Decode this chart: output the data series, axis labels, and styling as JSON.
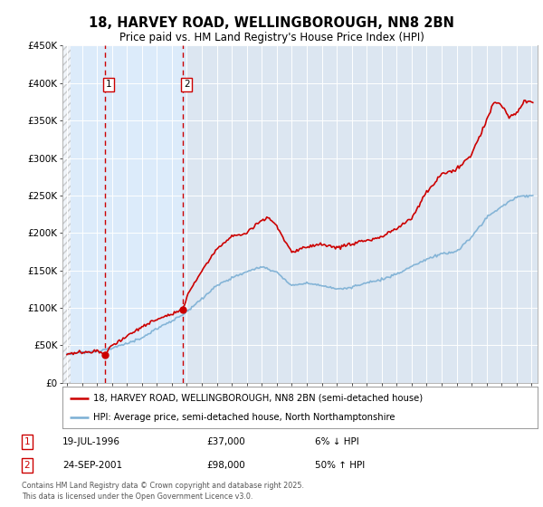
{
  "title": "18, HARVEY ROAD, WELLINGBOROUGH, NN8 2BN",
  "subtitle": "Price paid vs. HM Land Registry's House Price Index (HPI)",
  "background_color": "#ffffff",
  "plot_bg_color": "#dce6f1",
  "hatch_end": 1994.25,
  "highlight_start": 1994.25,
  "highlight_end": 2002.0,
  "xmin": 1993.7,
  "xmax": 2025.4,
  "ymin": 0,
  "ymax": 450000,
  "yticks": [
    0,
    50000,
    100000,
    150000,
    200000,
    250000,
    300000,
    350000,
    400000,
    450000
  ],
  "ytick_labels": [
    "£0",
    "£50K",
    "£100K",
    "£150K",
    "£200K",
    "£250K",
    "£300K",
    "£350K",
    "£400K",
    "£450K"
  ],
  "grid_color": "#ffffff",
  "hpi_color": "#7bafd4",
  "price_color": "#cc0000",
  "sale1_year": 1996.54,
  "sale1_price": 37000,
  "sale2_year": 2001.73,
  "sale2_price": 98000,
  "legend_line1": "18, HARVEY ROAD, WELLINGBOROUGH, NN8 2BN (semi-detached house)",
  "legend_line2": "HPI: Average price, semi-detached house, North Northamptonshire",
  "table_rows": [
    [
      "1",
      "19-JUL-1996",
      "£37,000",
      "6% ↓ HPI"
    ],
    [
      "2",
      "24-SEP-2001",
      "£98,000",
      "50% ↑ HPI"
    ]
  ],
  "footnote": "Contains HM Land Registry data © Crown copyright and database right 2025.\nThis data is licensed under the Open Government Licence v3.0."
}
